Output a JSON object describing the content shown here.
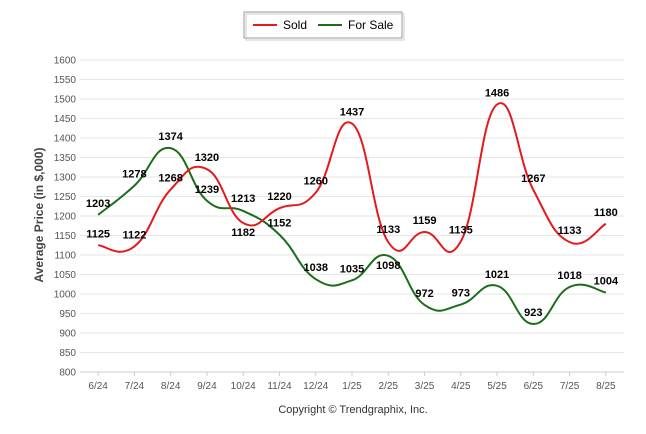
{
  "chart_data": {
    "type": "line",
    "categories": [
      "6/24",
      "7/24",
      "8/24",
      "9/24",
      "10/24",
      "11/24",
      "12/24",
      "1/25",
      "2/25",
      "3/25",
      "4/25",
      "5/25",
      "6/25",
      "7/25",
      "8/25"
    ],
    "series": [
      {
        "name": "Sold",
        "color": "#e41a1c",
        "values": [
          1125,
          1122,
          1268,
          1320,
          1182,
          1220,
          1260,
          1437,
          1133,
          1159,
          1135,
          1486,
          1267,
          1133,
          1180
        ]
      },
      {
        "name": "For Sale",
        "color": "#1a6e1a",
        "values": [
          1203,
          1278,
          1374,
          1239,
          1213,
          1152,
          1038,
          1035,
          1098,
          972,
          973,
          1021,
          923,
          1018,
          1004
        ]
      }
    ],
    "ylabel": "Average Price (in $,000)",
    "ylim": [
      800,
      1600
    ],
    "yticks": [
      800,
      850,
      900,
      950,
      1000,
      1050,
      1100,
      1150,
      1200,
      1250,
      1300,
      1350,
      1400,
      1450,
      1500,
      1550,
      1600
    ],
    "grid": true,
    "legend_position": "top-center"
  },
  "legend": {
    "sold_label": "Sold",
    "for_sale_label": "For Sale"
  },
  "footer": {
    "copyright": "Copyright © Trendgraphix, Inc."
  }
}
